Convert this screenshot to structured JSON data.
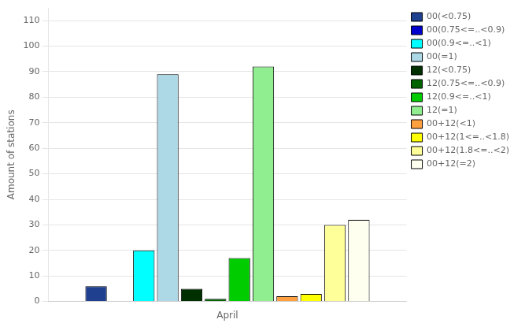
{
  "chart_data": {
    "type": "bar",
    "ylabel": "Amount of stations",
    "categories": [
      "April"
    ],
    "series": [
      {
        "name": "00(<0.75)",
        "color": "#1f3f8f",
        "values": [
          6
        ]
      },
      {
        "name": "00(0.75<=..<0.9)",
        "color": "#0000cd",
        "values": [
          0
        ]
      },
      {
        "name": "00(0.9<=..<1)",
        "color": "#00ffff",
        "values": [
          20
        ]
      },
      {
        "name": "00(=1)",
        "color": "#add8e6",
        "values": [
          89
        ]
      },
      {
        "name": "12(<0.75)",
        "color": "#003000",
        "values": [
          5
        ]
      },
      {
        "name": "12(0.75<=..<0.9)",
        "color": "#006400",
        "values": [
          1
        ]
      },
      {
        "name": "12(0.9<=..<1)",
        "color": "#00cc00",
        "values": [
          17
        ]
      },
      {
        "name": "12(=1)",
        "color": "#90ee90",
        "values": [
          92
        ]
      },
      {
        "name": "00+12(<1)",
        "color": "#ffa040",
        "values": [
          2
        ]
      },
      {
        "name": "00+12(1<=..<1.8)",
        "color": "#ffff00",
        "values": [
          3
        ]
      },
      {
        "name": "00+12(1.8<=..<2)",
        "color": "#ffff99",
        "values": [
          30
        ]
      },
      {
        "name": "00+12(=2)",
        "color": "#fffff0",
        "values": [
          32
        ]
      }
    ],
    "ylim": [
      0,
      115
    ],
    "yticks": [
      0,
      10,
      20,
      30,
      40,
      50,
      60,
      70,
      80,
      90,
      100,
      110
    ],
    "grid": true,
    "legend": "upper right"
  }
}
